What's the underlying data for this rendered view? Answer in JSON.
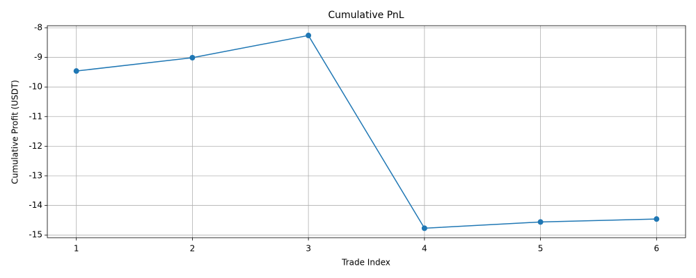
{
  "chart_data": {
    "type": "line",
    "title": "Cumulative PnL",
    "x_label": "Trade Index",
    "y_label": "Cumulative Profit (USDT)",
    "x": [
      1,
      2,
      3,
      4,
      5,
      6
    ],
    "series": [
      {
        "name": "Cumulative PnL",
        "color": "#1f77b4",
        "values": [
          -9.46,
          -9.01,
          -8.26,
          -14.77,
          -14.56,
          -14.46
        ]
      }
    ],
    "xlim": [
      0.75,
      6.25
    ],
    "xticks": [
      1,
      2,
      3,
      4,
      5,
      6
    ],
    "ylim": [
      -15.09,
      -7.93
    ],
    "yticks": [
      -15,
      -14,
      -13,
      -12,
      -11,
      -10,
      -9,
      -8
    ],
    "grid": true,
    "markers": true
  }
}
